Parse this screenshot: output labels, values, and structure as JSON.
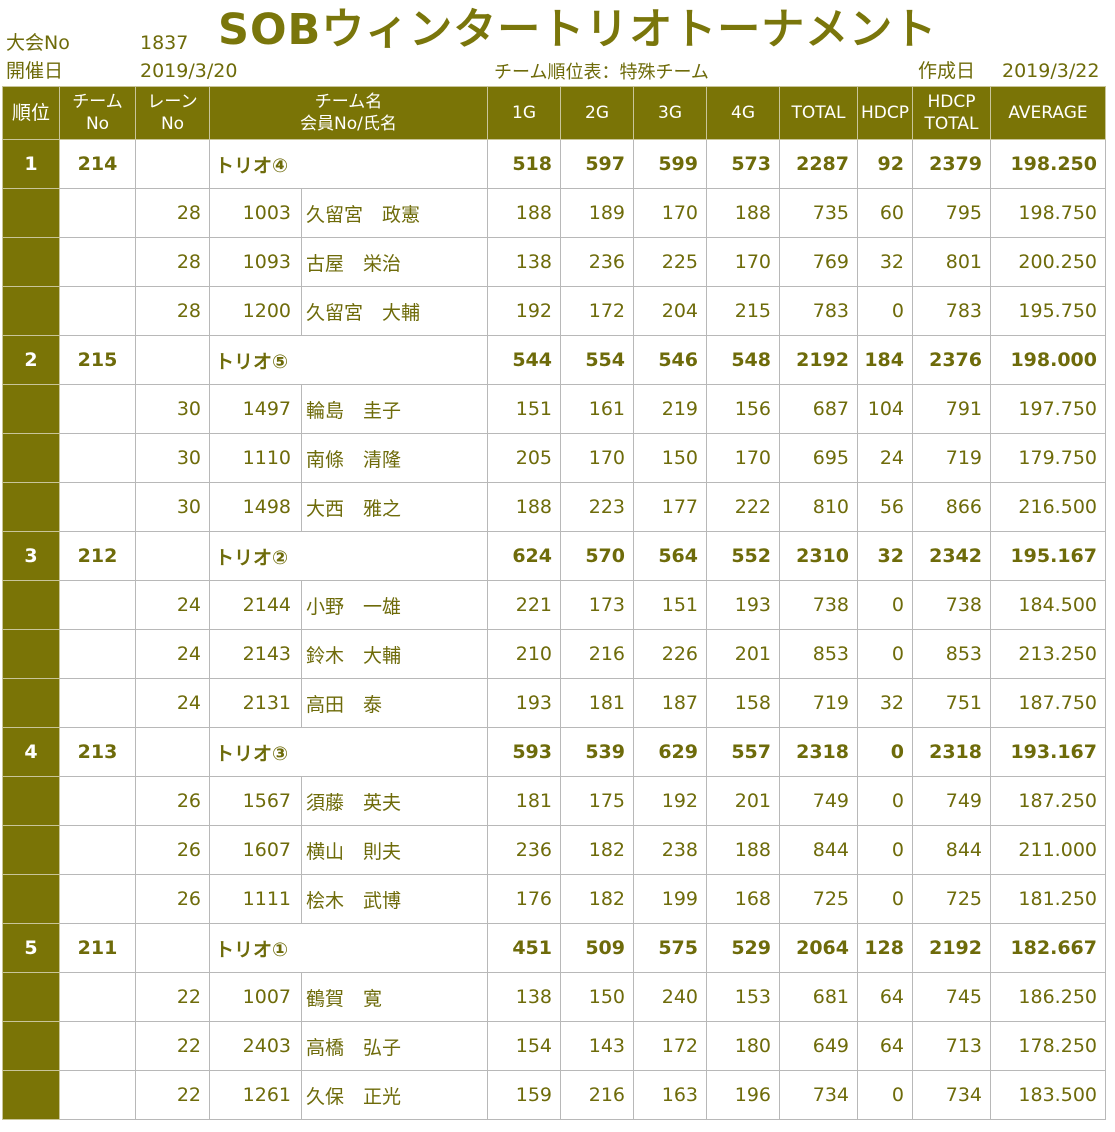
{
  "header": {
    "title": "SOBウィンタートリオトーナメント",
    "event_no_label": "大会No",
    "event_no": "1837",
    "date_label": "開催日",
    "date": "2019/3/20",
    "sheet_label": "チーム順位表：特殊チーム",
    "created_label": "作成日",
    "created_date": "2019/3/22"
  },
  "columns": {
    "rank": "順位",
    "team_no_1": "チーム",
    "team_no_2": "No",
    "lane_1": "レーン",
    "lane_2": "No",
    "name_1": "チーム名",
    "name_2": "会員No/氏名",
    "g1": "1G",
    "g2": "2G",
    "g3": "3G",
    "g4": "4G",
    "total": "TOTAL",
    "hdcp": "HDCP",
    "hdcp_total_1": "HDCP",
    "hdcp_total_2": "TOTAL",
    "average": "AVERAGE"
  },
  "teams": [
    {
      "rank": "1",
      "team_no": "214",
      "name": "トリオ④",
      "g1": "518",
      "g2": "597",
      "g3": "599",
      "g4": "573",
      "total": "2287",
      "hdcp": "92",
      "hdcp_total": "2379",
      "average": "198.250",
      "members": [
        {
          "lane": "28",
          "member_no": "1003",
          "name": "久留宮　政憲",
          "g1": "188",
          "g2": "189",
          "g3": "170",
          "g4": "188",
          "total": "735",
          "hdcp": "60",
          "hdcp_total": "795",
          "average": "198.750"
        },
        {
          "lane": "28",
          "member_no": "1093",
          "name": "古屋　栄治",
          "g1": "138",
          "g2": "236",
          "g3": "225",
          "g4": "170",
          "total": "769",
          "hdcp": "32",
          "hdcp_total": "801",
          "average": "200.250"
        },
        {
          "lane": "28",
          "member_no": "1200",
          "name": "久留宮　大輔",
          "g1": "192",
          "g2": "172",
          "g3": "204",
          "g4": "215",
          "total": "783",
          "hdcp": "0",
          "hdcp_total": "783",
          "average": "195.750"
        }
      ]
    },
    {
      "rank": "2",
      "team_no": "215",
      "name": "トリオ⑤",
      "g1": "544",
      "g2": "554",
      "g3": "546",
      "g4": "548",
      "total": "2192",
      "hdcp": "184",
      "hdcp_total": "2376",
      "average": "198.000",
      "members": [
        {
          "lane": "30",
          "member_no": "1497",
          "name": "輪島　圭子",
          "g1": "151",
          "g2": "161",
          "g3": "219",
          "g4": "156",
          "total": "687",
          "hdcp": "104",
          "hdcp_total": "791",
          "average": "197.750"
        },
        {
          "lane": "30",
          "member_no": "1110",
          "name": "南條　清隆",
          "g1": "205",
          "g2": "170",
          "g3": "150",
          "g4": "170",
          "total": "695",
          "hdcp": "24",
          "hdcp_total": "719",
          "average": "179.750"
        },
        {
          "lane": "30",
          "member_no": "1498",
          "name": "大西　雅之",
          "g1": "188",
          "g2": "223",
          "g3": "177",
          "g4": "222",
          "total": "810",
          "hdcp": "56",
          "hdcp_total": "866",
          "average": "216.500"
        }
      ]
    },
    {
      "rank": "3",
      "team_no": "212",
      "name": "トリオ②",
      "g1": "624",
      "g2": "570",
      "g3": "564",
      "g4": "552",
      "total": "2310",
      "hdcp": "32",
      "hdcp_total": "2342",
      "average": "195.167",
      "members": [
        {
          "lane": "24",
          "member_no": "2144",
          "name": "小野　一雄",
          "g1": "221",
          "g2": "173",
          "g3": "151",
          "g4": "193",
          "total": "738",
          "hdcp": "0",
          "hdcp_total": "738",
          "average": "184.500"
        },
        {
          "lane": "24",
          "member_no": "2143",
          "name": "鈴木　大輔",
          "g1": "210",
          "g2": "216",
          "g3": "226",
          "g4": "201",
          "total": "853",
          "hdcp": "0",
          "hdcp_total": "853",
          "average": "213.250"
        },
        {
          "lane": "24",
          "member_no": "2131",
          "name": "高田　泰",
          "g1": "193",
          "g2": "181",
          "g3": "187",
          "g4": "158",
          "total": "719",
          "hdcp": "32",
          "hdcp_total": "751",
          "average": "187.750"
        }
      ]
    },
    {
      "rank": "4",
      "team_no": "213",
      "name": "トリオ③",
      "g1": "593",
      "g2": "539",
      "g3": "629",
      "g4": "557",
      "total": "2318",
      "hdcp": "0",
      "hdcp_total": "2318",
      "average": "193.167",
      "members": [
        {
          "lane": "26",
          "member_no": "1567",
          "name": "須藤　英夫",
          "g1": "181",
          "g2": "175",
          "g3": "192",
          "g4": "201",
          "total": "749",
          "hdcp": "0",
          "hdcp_total": "749",
          "average": "187.250"
        },
        {
          "lane": "26",
          "member_no": "1607",
          "name": "横山　則夫",
          "g1": "236",
          "g2": "182",
          "g3": "238",
          "g4": "188",
          "total": "844",
          "hdcp": "0",
          "hdcp_total": "844",
          "average": "211.000"
        },
        {
          "lane": "26",
          "member_no": "1111",
          "name": "桧木　武博",
          "g1": "176",
          "g2": "182",
          "g3": "199",
          "g4": "168",
          "total": "725",
          "hdcp": "0",
          "hdcp_total": "725",
          "average": "181.250"
        }
      ]
    },
    {
      "rank": "5",
      "team_no": "211",
      "name": "トリオ①",
      "g1": "451",
      "g2": "509",
      "g3": "575",
      "g4": "529",
      "total": "2064",
      "hdcp": "128",
      "hdcp_total": "2192",
      "average": "182.667",
      "members": [
        {
          "lane": "22",
          "member_no": "1007",
          "name": "鶴賀　寛",
          "g1": "138",
          "g2": "150",
          "g3": "240",
          "g4": "153",
          "total": "681",
          "hdcp": "64",
          "hdcp_total": "745",
          "average": "186.250"
        },
        {
          "lane": "22",
          "member_no": "2403",
          "name": "高橋　弘子",
          "g1": "154",
          "g2": "143",
          "g3": "172",
          "g4": "180",
          "total": "649",
          "hdcp": "64",
          "hdcp_total": "713",
          "average": "178.250"
        },
        {
          "lane": "22",
          "member_no": "1261",
          "name": "久保　正光",
          "g1": "159",
          "g2": "216",
          "g3": "163",
          "g4": "196",
          "total": "734",
          "hdcp": "0",
          "hdcp_total": "734",
          "average": "183.500"
        }
      ]
    }
  ],
  "colors": {
    "accent": "#7a7406",
    "text": "#6e6b0a",
    "grid": "#b8b8b8"
  }
}
